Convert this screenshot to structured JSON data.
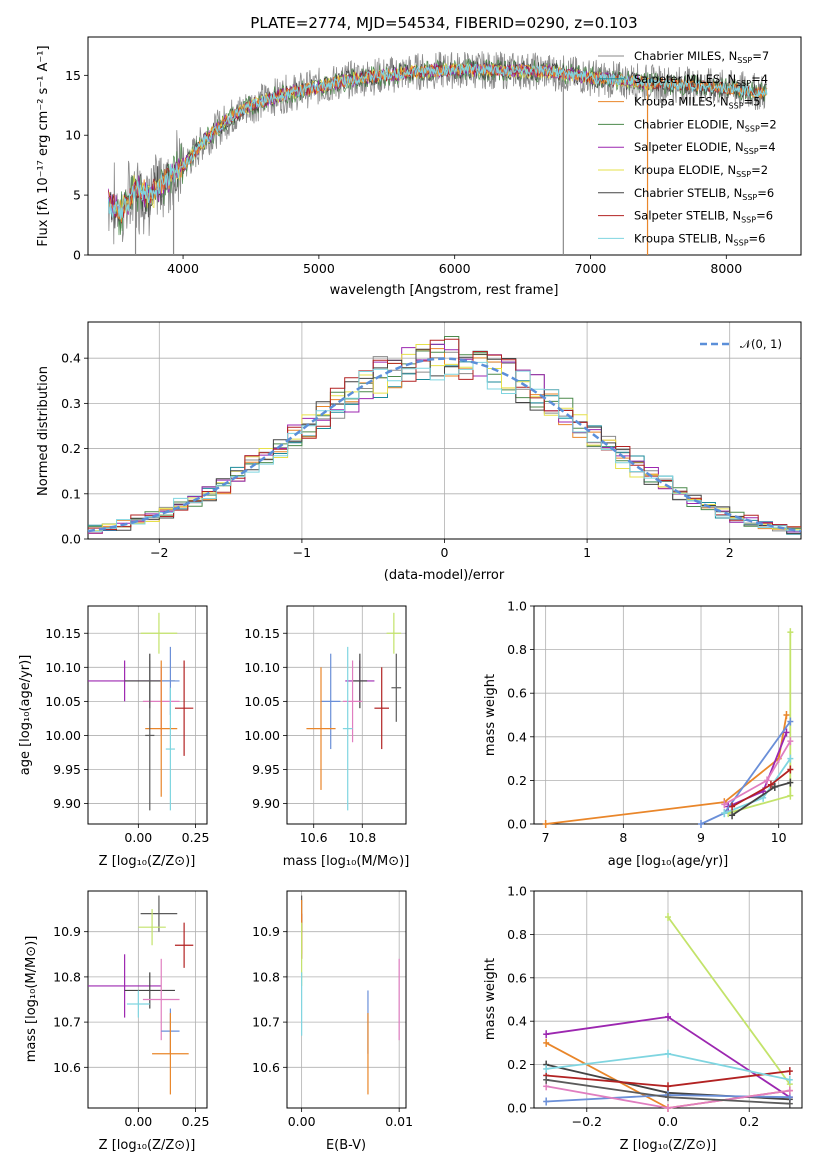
{
  "chart_data": [
    {
      "id": "spectrum",
      "type": "line",
      "title": "PLATE=2774, MJD=54534, FIBERID=0290, z=0.103",
      "xlabel": "wavelength [Angstrom, rest frame]",
      "ylabel": "Flux [fλ 10⁻¹⁷ erg cm⁻² s⁻¹ A⁻¹]",
      "xlim": [
        3300,
        8550
      ],
      "ylim": [
        0,
        18.2
      ],
      "xticks": [
        4000,
        5000,
        6000,
        7000,
        8000
      ],
      "yticks": [
        0,
        5,
        10,
        15
      ],
      "grid": false,
      "legend_placement": "right",
      "data_envelope": {
        "x": [
          3450,
          3550,
          3650,
          3750,
          3850,
          3950,
          4050,
          4150,
          4250,
          4350,
          4500,
          4700,
          4900,
          5100,
          5300,
          5500,
          5700,
          5900,
          6100,
          6300,
          6500,
          6700,
          6900,
          7100,
          7300,
          7500,
          7700,
          7900,
          8100,
          8300
        ],
        "y": [
          4.5,
          3.5,
          5.5,
          5.0,
          6.0,
          7.0,
          8.0,
          9.5,
          10.5,
          11.5,
          12.5,
          13.3,
          13.8,
          14.3,
          14.8,
          15.0,
          15.3,
          15.4,
          15.5,
          15.4,
          15.4,
          15.3,
          15.0,
          14.7,
          14.5,
          14.3,
          14.2,
          14.0,
          13.8,
          13.5
        ]
      },
      "drops": [
        {
          "x": 6800,
          "y": 0
        },
        {
          "x": 7420,
          "y": 0
        },
        {
          "x": 3930,
          "y": 0
        },
        {
          "x": 3650,
          "y": 0
        }
      ]
    },
    {
      "id": "residuals",
      "type": "line",
      "xlabel": "(data-model)/error",
      "ylabel": "Normed distribution",
      "xlim": [
        -2.5,
        2.5
      ],
      "ylim": [
        0,
        0.48
      ],
      "xticks": [
        -2,
        -1,
        0,
        1,
        2
      ],
      "yticks": [
        0.0,
        0.1,
        0.2,
        0.3,
        0.4
      ],
      "grid": true,
      "legend_placement": "top-right",
      "legend": "𝒩(0, 1)",
      "gauss_color": "#5b8fd9"
    },
    {
      "id": "age-vs-Z",
      "type": "scatter",
      "xlabel": "Z [log₁₀(Z/Z⊙)]",
      "ylabel": "age  [log₁₀(age/yr)]",
      "xlim": [
        -0.22,
        0.3
      ],
      "ylim": [
        9.87,
        10.19
      ],
      "xticks": [
        0.0,
        0.25
      ],
      "yticks": [
        9.9,
        9.95,
        10.0,
        10.05,
        10.1,
        10.15
      ],
      "grid": true,
      "points": [
        {
          "x": 0.09,
          "y": 10.15,
          "xerr": 0.08,
          "yerr": 0.03,
          "color": "#c3e36a"
        },
        {
          "x": -0.06,
          "y": 10.08,
          "xerr": 0.16,
          "yerr": 0.03,
          "color": "#9c27b0"
        },
        {
          "x": 0.05,
          "y": 10.08,
          "xerr": 0.11,
          "yerr": 0.04,
          "color": "#444444"
        },
        {
          "x": 0.14,
          "y": 10.08,
          "xerr": 0.04,
          "yerr": 0.05,
          "color": "#6a8fd8"
        },
        {
          "x": 0.1,
          "y": 10.05,
          "xerr": 0.08,
          "yerr": 0.05,
          "color": "#e07ec0"
        },
        {
          "x": 0.2,
          "y": 10.04,
          "xerr": 0.04,
          "yerr": 0.07,
          "color": "#b22222"
        },
        {
          "x": 0.1,
          "y": 10.01,
          "xerr": 0.07,
          "yerr": 0.1,
          "color": "#e9862a"
        },
        {
          "x": 0.14,
          "y": 9.98,
          "xerr": 0.02,
          "yerr": 0.09,
          "color": "#7fd5e0"
        },
        {
          "x": 0.05,
          "y": 10.0,
          "xerr": 0.02,
          "yerr": 0.11,
          "color": "#5b5b5b"
        }
      ]
    },
    {
      "id": "age-vs-mass",
      "type": "scatter",
      "xlabel": "mass [log₁₀(M/M⊙)]",
      "xlim": [
        10.49,
        10.98
      ],
      "ylim": [
        9.87,
        10.19
      ],
      "xticks": [
        10.6,
        10.8
      ],
      "yticks": [
        9.9,
        9.95,
        10.0,
        10.05,
        10.1,
        10.15
      ],
      "grid": true,
      "points": [
        {
          "x": 10.93,
          "y": 10.15,
          "xerr": 0.03,
          "yerr": 0.03,
          "color": "#c3e36a"
        },
        {
          "x": 10.79,
          "y": 10.08,
          "xerr": 0.06,
          "yerr": 0.03,
          "color": "#9c27b0"
        },
        {
          "x": 10.79,
          "y": 10.08,
          "xerr": 0.03,
          "yerr": 0.04,
          "color": "#444444"
        },
        {
          "x": 10.67,
          "y": 10.05,
          "xerr": 0.04,
          "yerr": 0.07,
          "color": "#6a8fd8"
        },
        {
          "x": 10.76,
          "y": 10.05,
          "xerr": 0.04,
          "yerr": 0.06,
          "color": "#e07ec0"
        },
        {
          "x": 10.88,
          "y": 10.04,
          "xerr": 0.03,
          "yerr": 0.06,
          "color": "#b22222"
        },
        {
          "x": 10.63,
          "y": 10.01,
          "xerr": 0.06,
          "yerr": 0.09,
          "color": "#e9862a"
        },
        {
          "x": 10.74,
          "y": 10.01,
          "xerr": 0.02,
          "yerr": 0.12,
          "color": "#7fd5e0"
        },
        {
          "x": 10.94,
          "y": 10.07,
          "xerr": 0.02,
          "yerr": 0.05,
          "color": "#5b5b5b"
        }
      ]
    },
    {
      "id": "weight-vs-age",
      "type": "line",
      "xlabel": "age  [log₁₀(age/yr)]",
      "ylabel": "mass weight",
      "xlim": [
        6.85,
        10.3
      ],
      "ylim": [
        0.0,
        1.0
      ],
      "xticks": [
        7,
        8,
        9,
        10
      ],
      "yticks": [
        0.0,
        0.2,
        0.4,
        0.6,
        0.8,
        1.0
      ],
      "grid": true,
      "series": [
        {
          "color": "#e9862a",
          "x": [
            7.0,
            9.3,
            10.0,
            10.1
          ],
          "y": [
            0.0,
            0.1,
            0.3,
            0.5
          ]
        },
        {
          "color": "#c3e36a",
          "x": [
            9.35,
            10.15,
            10.15
          ],
          "y": [
            0.05,
            0.13,
            0.88
          ]
        },
        {
          "color": "#9c27b0",
          "x": [
            9.35,
            9.8,
            10.1
          ],
          "y": [
            0.08,
            0.15,
            0.42
          ]
        },
        {
          "color": "#6a8fd8",
          "x": [
            9.0,
            9.3,
            10.15
          ],
          "y": [
            0.0,
            0.05,
            0.47
          ]
        },
        {
          "color": "#7fd5e0",
          "x": [
            9.3,
            9.8,
            10.15
          ],
          "y": [
            0.05,
            0.12,
            0.3
          ]
        },
        {
          "color": "#b22222",
          "x": [
            9.4,
            9.9,
            10.15
          ],
          "y": [
            0.08,
            0.18,
            0.25
          ]
        },
        {
          "color": "#444444",
          "x": [
            9.4,
            9.95,
            10.15
          ],
          "y": [
            0.04,
            0.17,
            0.19
          ]
        },
        {
          "color": "#e07ec0",
          "x": [
            9.3,
            9.85,
            10.15
          ],
          "y": [
            0.09,
            0.2,
            0.38
          ]
        }
      ]
    },
    {
      "id": "mass-vs-Z",
      "type": "scatter",
      "xlabel": "Z [log₁₀(Z/Z⊙)]",
      "ylabel": "mass [log₁₀(M/M⊙)]",
      "xlim": [
        -0.22,
        0.3
      ],
      "ylim": [
        10.51,
        10.99
      ],
      "xticks": [
        0.0,
        0.25
      ],
      "yticks": [
        10.6,
        10.7,
        10.8,
        10.9
      ],
      "grid": true,
      "points": [
        {
          "x": 0.09,
          "y": 10.94,
          "xerr": 0.08,
          "yerr": 0.04,
          "color": "#5b5b5b"
        },
        {
          "x": 0.06,
          "y": 10.91,
          "xerr": 0.06,
          "yerr": 0.04,
          "color": "#c3e36a"
        },
        {
          "x": 0.2,
          "y": 10.87,
          "xerr": 0.04,
          "yerr": 0.05,
          "color": "#b22222"
        },
        {
          "x": -0.06,
          "y": 10.78,
          "xerr": 0.16,
          "yerr": 0.07,
          "color": "#9c27b0"
        },
        {
          "x": 0.05,
          "y": 10.77,
          "xerr": 0.11,
          "yerr": 0.04,
          "color": "#444444"
        },
        {
          "x": 0.1,
          "y": 10.75,
          "xerr": 0.08,
          "yerr": 0.09,
          "color": "#e07ec0"
        },
        {
          "x": 0.0,
          "y": 10.74,
          "xerr": 0.05,
          "yerr": 0.03,
          "color": "#7fd5e0"
        },
        {
          "x": 0.14,
          "y": 10.68,
          "xerr": 0.04,
          "yerr": 0.05,
          "color": "#6a8fd8"
        },
        {
          "x": 0.14,
          "y": 10.63,
          "xerr": 0.08,
          "yerr": 0.09,
          "color": "#e9862a"
        }
      ]
    },
    {
      "id": "mass-vs-EBV",
      "type": "scatter",
      "xlabel": "E(B-V)",
      "xlim": [
        -0.0015,
        0.0107
      ],
      "ylim": [
        10.51,
        10.99
      ],
      "xticks": [
        0.0,
        0.01
      ],
      "yticks": [
        10.6,
        10.7,
        10.8,
        10.9
      ],
      "grid": true,
      "points": [
        {
          "x": 0.0,
          "y": 10.94,
          "yerr": 0.04,
          "color": "#5b5b5b"
        },
        {
          "x": 0.0,
          "y": 10.89,
          "yerr": 0.05,
          "color": "#b22222"
        },
        {
          "x": 0.0,
          "y": 10.91,
          "yerr": 0.06,
          "color": "#e9862a"
        },
        {
          "x": 0.0,
          "y": 10.85,
          "yerr": 0.07,
          "color": "#c3e36a"
        },
        {
          "x": 0.0,
          "y": 10.74,
          "yerr": 0.07,
          "color": "#7fd5e0"
        },
        {
          "x": 0.0068,
          "y": 10.7,
          "yerr": 0.07,
          "color": "#6a8fd8"
        },
        {
          "x": 0.0068,
          "y": 10.63,
          "yerr": 0.09,
          "color": "#e9862a"
        },
        {
          "x": 0.01,
          "y": 10.75,
          "yerr": 0.09,
          "color": "#e07ec0"
        }
      ]
    },
    {
      "id": "weight-vs-Z",
      "type": "line",
      "xlabel": "Z [log₁₀(Z/Z⊙)]",
      "ylabel": "mass weight",
      "xlim": [
        -0.33,
        0.33
      ],
      "ylim": [
        0.0,
        1.0
      ],
      "xticks": [
        -0.2,
        0.0,
        0.2
      ],
      "yticks": [
        0.0,
        0.2,
        0.4,
        0.6,
        0.8,
        1.0
      ],
      "grid": true,
      "series": [
        {
          "color": "#c3e36a",
          "x": [
            0.0,
            0.3
          ],
          "y": [
            0.88,
            0.11
          ]
        },
        {
          "color": "#9c27b0",
          "x": [
            -0.3,
            0.0,
            0.3
          ],
          "y": [
            0.34,
            0.42,
            0.05
          ]
        },
        {
          "color": "#e9862a",
          "x": [
            -0.3,
            0.0,
            0.3
          ],
          "y": [
            0.3,
            0.0,
            0.08
          ]
        },
        {
          "color": "#444444",
          "x": [
            -0.3,
            0.0,
            0.3
          ],
          "y": [
            0.2,
            0.07,
            0.04
          ]
        },
        {
          "color": "#b22222",
          "x": [
            -0.3,
            0.0,
            0.3
          ],
          "y": [
            0.15,
            0.1,
            0.17
          ]
        },
        {
          "color": "#6a8fd8",
          "x": [
            -0.3,
            0.0,
            0.3
          ],
          "y": [
            0.03,
            0.06,
            0.05
          ]
        },
        {
          "color": "#7fd5e0",
          "x": [
            -0.3,
            0.0,
            0.3
          ],
          "y": [
            0.18,
            0.25,
            0.13
          ]
        },
        {
          "color": "#e07ec0",
          "x": [
            -0.3,
            0.0,
            0.3
          ],
          "y": [
            0.1,
            0.0,
            0.08
          ]
        },
        {
          "color": "#5b5b5b",
          "x": [
            -0.3,
            0.0,
            0.3
          ],
          "y": [
            0.13,
            0.05,
            0.02
          ]
        }
      ]
    }
  ],
  "legend": [
    {
      "base": "Chabrier MILES, N",
      "sub": "SSP",
      "tail": "=7",
      "color": "#8a8a8a"
    },
    {
      "base": "Salpeter MILES, N",
      "sub": "SSP",
      "tail": "=4",
      "color": "#1b8a9a"
    },
    {
      "base": "Kroupa MILES, N",
      "sub": "SSP",
      "tail": "=5",
      "color": "#e9862a"
    },
    {
      "base": "Chabrier ELODIE, N",
      "sub": "SSP",
      "tail": "=2",
      "color": "#4c8a4c"
    },
    {
      "base": "Salpeter ELODIE, N",
      "sub": "SSP",
      "tail": "=4",
      "color": "#9c27b0"
    },
    {
      "base": "Kroupa ELODIE, N",
      "sub": "SSP",
      "tail": "=2",
      "color": "#e6e04a"
    },
    {
      "base": "Chabrier STELIB, N",
      "sub": "SSP",
      "tail": "=6",
      "color": "#444444"
    },
    {
      "base": "Salpeter STELIB, N",
      "sub": "SSP",
      "tail": "=6",
      "color": "#b22222"
    },
    {
      "base": "Kroupa STELIB, N",
      "sub": "SSP",
      "tail": "=6",
      "color": "#7fd5e0"
    }
  ]
}
